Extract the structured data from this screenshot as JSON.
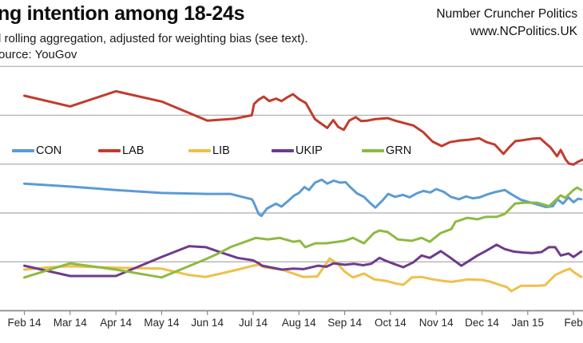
{
  "header": {
    "title": "ng intention among 18-24s",
    "subtitle": "l rolling aggregation, adjusted for weighting bias (see text).",
    "source": "ource: YouGov",
    "brand": {
      "line1": "Number Cruncher Politics",
      "line2": "www.NCPolitics.UK"
    }
  },
  "style": {
    "gridline_color": "#ababab",
    "axis_color": "#8c8c8c",
    "background": "#ffffff",
    "text_color": "#1a1a1a"
  },
  "chart_data": {
    "type": "line",
    "title": "ng intention among 18-24s",
    "xlabel": "",
    "ylabel": "",
    "x_axis": {
      "tick_labels": [
        "Feb 14",
        "Mar 14",
        "Apr 14",
        "May 14",
        "Jun 14",
        "Jul 14",
        "Aug 14",
        "Sep 14",
        "Oct 14",
        "Nov 14",
        "Dec 14",
        "Jan 15",
        "Feb"
      ],
      "range_months": [
        0,
        12.2
      ],
      "vertical_gridlines": false
    },
    "y_axis": {
      "min": 0,
      "max": 50,
      "gridline_interval": 10,
      "tick_labels_visible": false,
      "horizontal_gridlines": true
    },
    "legend": {
      "position": "inside-top, single row",
      "items": [
        {
          "label": "CON",
          "color": "#5b9bd5"
        },
        {
          "label": "LAB",
          "color": "#c23b2d"
        },
        {
          "label": "LIB",
          "color": "#efc04a"
        },
        {
          "label": "UKIP",
          "color": "#6f3b8c"
        },
        {
          "label": "GRN",
          "color": "#8dba41"
        }
      ]
    },
    "series": [
      {
        "name": "CON",
        "color": "#5b9bd5",
        "points": [
          [
            0,
            26.0
          ],
          [
            1,
            25.4
          ],
          [
            2,
            24.7
          ],
          [
            3,
            24.1
          ],
          [
            4,
            23.9
          ],
          [
            4.5,
            23.9
          ],
          [
            4.97,
            22.8
          ],
          [
            5.0,
            22.4
          ],
          [
            5.12,
            19.8
          ],
          [
            5.18,
            19.4
          ],
          [
            5.3,
            20.9
          ],
          [
            5.5,
            21.9
          ],
          [
            5.62,
            21.3
          ],
          [
            5.78,
            22.6
          ],
          [
            5.9,
            23.6
          ],
          [
            6.0,
            24.1
          ],
          [
            6.12,
            25.3
          ],
          [
            6.22,
            24.7
          ],
          [
            6.35,
            26.2
          ],
          [
            6.5,
            26.8
          ],
          [
            6.62,
            26.0
          ],
          [
            6.76,
            26.6
          ],
          [
            6.9,
            26.2
          ],
          [
            7.02,
            26.3
          ],
          [
            7.12,
            25.3
          ],
          [
            7.27,
            24.0
          ],
          [
            7.42,
            23.3
          ],
          [
            7.57,
            21.9
          ],
          [
            7.67,
            21.1
          ],
          [
            7.82,
            22.5
          ],
          [
            7.95,
            23.9
          ],
          [
            8.1,
            23.3
          ],
          [
            8.27,
            23.7
          ],
          [
            8.42,
            23.2
          ],
          [
            8.57,
            24.0
          ],
          [
            8.72,
            24.5
          ],
          [
            8.87,
            24.2
          ],
          [
            9.0,
            24.9
          ],
          [
            9.17,
            24.3
          ],
          [
            9.32,
            23.3
          ],
          [
            9.5,
            22.8
          ],
          [
            9.65,
            23.4
          ],
          [
            9.8,
            23.0
          ],
          [
            9.95,
            23.2
          ],
          [
            10.12,
            23.8
          ],
          [
            10.3,
            24.3
          ],
          [
            10.5,
            24.7
          ],
          [
            10.65,
            23.8
          ],
          [
            10.85,
            22.7
          ],
          [
            11.4,
            21.2
          ],
          [
            11.55,
            21.4
          ],
          [
            11.65,
            22.8
          ],
          [
            11.77,
            21.9
          ],
          [
            11.89,
            23.2
          ],
          [
            12.0,
            22.2
          ],
          [
            12.1,
            22.9
          ],
          [
            12.17,
            22.8
          ]
        ]
      },
      {
        "name": "LAB",
        "color": "#c23b2d",
        "points": [
          [
            0,
            44.0
          ],
          [
            1,
            41.8
          ],
          [
            2,
            44.9
          ],
          [
            3,
            42.8
          ],
          [
            4,
            38.9
          ],
          [
            4.6,
            39.3
          ],
          [
            4.97,
            40.0
          ],
          [
            5.02,
            42.3
          ],
          [
            5.12,
            43.2
          ],
          [
            5.23,
            43.8
          ],
          [
            5.35,
            42.9
          ],
          [
            5.5,
            43.4
          ],
          [
            5.62,
            42.9
          ],
          [
            5.75,
            43.7
          ],
          [
            5.87,
            44.3
          ],
          [
            6.0,
            43.3
          ],
          [
            6.15,
            42.5
          ],
          [
            6.35,
            39.2
          ],
          [
            6.5,
            38.2
          ],
          [
            6.62,
            37.4
          ],
          [
            6.75,
            39.0
          ],
          [
            6.86,
            37.6
          ],
          [
            6.98,
            37.0
          ],
          [
            7.1,
            38.9
          ],
          [
            7.24,
            39.6
          ],
          [
            7.36,
            38.8
          ],
          [
            7.5,
            38.9
          ],
          [
            7.66,
            39.2
          ],
          [
            7.8,
            39.3
          ],
          [
            7.94,
            39.4
          ],
          [
            8.1,
            38.9
          ],
          [
            8.3,
            38.4
          ],
          [
            8.5,
            37.9
          ],
          [
            8.72,
            36.5
          ],
          [
            8.92,
            34.6
          ],
          [
            9.12,
            33.7
          ],
          [
            9.3,
            34.5
          ],
          [
            9.5,
            34.8
          ],
          [
            9.72,
            35.0
          ],
          [
            9.94,
            35.3
          ],
          [
            10.1,
            34.5
          ],
          [
            10.28,
            34.0
          ],
          [
            10.47,
            32.1
          ],
          [
            10.6,
            33.5
          ],
          [
            10.73,
            34.7
          ],
          [
            10.9,
            34.9
          ],
          [
            11.1,
            35.2
          ],
          [
            11.27,
            35.3
          ],
          [
            11.4,
            34.2
          ],
          [
            11.5,
            33.4
          ],
          [
            11.64,
            31.6
          ],
          [
            11.72,
            32.9
          ],
          [
            11.83,
            30.9
          ],
          [
            11.9,
            30.1
          ],
          [
            12.0,
            29.9
          ],
          [
            12.1,
            30.5
          ],
          [
            12.2,
            30.9
          ]
        ]
      },
      {
        "name": "LIB",
        "color": "#efc04a",
        "points": [
          [
            0,
            8.4
          ],
          [
            0.57,
            8.9
          ],
          [
            1,
            9.1
          ],
          [
            2,
            8.8
          ],
          [
            3,
            8.6
          ],
          [
            3.6,
            7.3
          ],
          [
            3.96,
            6.9
          ],
          [
            4.3,
            7.6
          ],
          [
            4.66,
            8.4
          ],
          [
            5.0,
            9.2
          ],
          [
            5.12,
            9.4
          ],
          [
            5.24,
            8.9
          ],
          [
            5.63,
            8.4
          ],
          [
            5.88,
            7.6
          ],
          [
            6.1,
            6.9
          ],
          [
            6.4,
            7.0
          ],
          [
            6.55,
            9.0
          ],
          [
            6.67,
            10.7
          ],
          [
            6.84,
            9.7
          ],
          [
            7.0,
            8.0
          ],
          [
            7.18,
            6.8
          ],
          [
            7.42,
            7.6
          ],
          [
            7.65,
            6.4
          ],
          [
            7.9,
            6.1
          ],
          [
            8.1,
            5.6
          ],
          [
            8.28,
            5.3
          ],
          [
            8.47,
            6.8
          ],
          [
            8.68,
            6.9
          ],
          [
            8.93,
            6.4
          ],
          [
            9.15,
            6.1
          ],
          [
            9.33,
            5.9
          ],
          [
            9.55,
            6.2
          ],
          [
            9.68,
            6.4
          ],
          [
            10.0,
            6.3
          ],
          [
            10.2,
            5.9
          ],
          [
            10.38,
            5.3
          ],
          [
            10.55,
            4.8
          ],
          [
            10.64,
            4.0
          ],
          [
            10.85,
            5.1
          ],
          [
            11.2,
            5.1
          ],
          [
            11.38,
            5.2
          ],
          [
            11.6,
            7.3
          ],
          [
            11.78,
            8.1
          ],
          [
            11.92,
            8.6
          ],
          [
            12.02,
            7.8
          ],
          [
            12.17,
            6.9
          ]
        ]
      },
      {
        "name": "UKIP",
        "color": "#6f3b8c",
        "points": [
          [
            0,
            9.2
          ],
          [
            1,
            7.1
          ],
          [
            2,
            7.1
          ],
          [
            3,
            11.0
          ],
          [
            3.6,
            13.2
          ],
          [
            3.97,
            13.0
          ],
          [
            4.3,
            11.9
          ],
          [
            4.66,
            10.8
          ],
          [
            5.0,
            10.3
          ],
          [
            5.12,
            9.7
          ],
          [
            5.2,
            9.2
          ],
          [
            5.42,
            8.8
          ],
          [
            5.63,
            8.4
          ],
          [
            5.88,
            8.6
          ],
          [
            6.1,
            8.5
          ],
          [
            6.42,
            9.2
          ],
          [
            6.6,
            9.0
          ],
          [
            6.76,
            9.7
          ],
          [
            7.0,
            9.4
          ],
          [
            7.2,
            9.6
          ],
          [
            7.4,
            9.3
          ],
          [
            7.58,
            9.6
          ],
          [
            7.76,
            10.8
          ],
          [
            7.9,
            10.2
          ],
          [
            8.1,
            9.5
          ],
          [
            8.28,
            8.9
          ],
          [
            8.5,
            9.9
          ],
          [
            8.68,
            11.3
          ],
          [
            8.86,
            10.8
          ],
          [
            9.1,
            12.2
          ],
          [
            9.3,
            10.9
          ],
          [
            9.55,
            9.2
          ],
          [
            9.75,
            10.4
          ],
          [
            9.9,
            11.3
          ],
          [
            10.08,
            12.2
          ],
          [
            10.32,
            13.5
          ],
          [
            10.5,
            12.6
          ],
          [
            10.7,
            12.1
          ],
          [
            10.9,
            11.9
          ],
          [
            11.1,
            11.8
          ],
          [
            11.3,
            12.0
          ],
          [
            11.46,
            13.0
          ],
          [
            11.6,
            13.0
          ],
          [
            11.72,
            11.3
          ],
          [
            11.89,
            11.7
          ],
          [
            12.0,
            11.0
          ],
          [
            12.17,
            12.1
          ]
        ]
      },
      {
        "name": "GRN",
        "color": "#8dba41",
        "points": [
          [
            0,
            6.8
          ],
          [
            1,
            9.7
          ],
          [
            2,
            8.4
          ],
          [
            3,
            6.8
          ],
          [
            4,
            10.7
          ],
          [
            4.24,
            11.7
          ],
          [
            4.5,
            13.0
          ],
          [
            5.06,
            14.9
          ],
          [
            5.32,
            14.6
          ],
          [
            5.58,
            14.9
          ],
          [
            5.88,
            14.1
          ],
          [
            6.02,
            14.3
          ],
          [
            6.14,
            13.0
          ],
          [
            6.36,
            13.8
          ],
          [
            6.6,
            13.8
          ],
          [
            7.0,
            14.3
          ],
          [
            7.18,
            14.9
          ],
          [
            7.42,
            13.8
          ],
          [
            7.64,
            15.9
          ],
          [
            7.76,
            16.4
          ],
          [
            7.94,
            16.1
          ],
          [
            8.16,
            14.6
          ],
          [
            8.46,
            14.3
          ],
          [
            8.68,
            14.9
          ],
          [
            8.86,
            14.1
          ],
          [
            9.1,
            15.9
          ],
          [
            9.33,
            16.7
          ],
          [
            9.42,
            18.2
          ],
          [
            9.68,
            19.0
          ],
          [
            9.9,
            18.7
          ],
          [
            10.08,
            19.2
          ],
          [
            10.32,
            19.2
          ],
          [
            10.5,
            19.8
          ],
          [
            10.72,
            21.9
          ],
          [
            10.9,
            22.1
          ],
          [
            11.2,
            22.1
          ],
          [
            11.47,
            21.4
          ],
          [
            11.72,
            23.6
          ],
          [
            11.82,
            23.1
          ],
          [
            12.0,
            24.7
          ],
          [
            12.08,
            25.2
          ],
          [
            12.17,
            24.7
          ]
        ]
      }
    ]
  }
}
